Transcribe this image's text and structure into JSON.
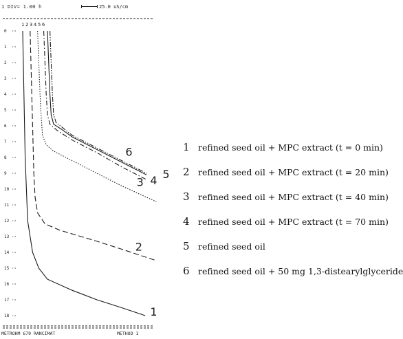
{
  "header": {
    "div_label": "1 DIV= 1.00 h",
    "scale_label": "25.0 uS/cm"
  },
  "footer": {
    "left": "METROHM 679 RANCIMAT",
    "right": "METHOD 1"
  },
  "colors": {
    "ink": "#1a1a1a"
  },
  "chart_data": {
    "type": "line",
    "title": "",
    "xlabel": "",
    "ylabel": "",
    "y_ticks": [
      "0",
      "1",
      "2",
      "3",
      "4",
      "5",
      "6",
      "7",
      "8",
      "9",
      "10",
      "11",
      "12",
      "13",
      "14",
      "15",
      "16",
      "17",
      "18"
    ],
    "top_labels": [
      "1",
      "2",
      "3",
      "4",
      "5",
      "6"
    ],
    "series": [
      {
        "name": "1",
        "style": "solid",
        "points": [
          [
            0.0,
            0
          ],
          [
            0.1,
            4
          ],
          [
            0.2,
            8
          ],
          [
            0.4,
            12
          ],
          [
            0.8,
            14
          ],
          [
            1.3,
            15
          ],
          [
            2.0,
            15.7
          ],
          [
            4.0,
            16.4
          ],
          [
            6.0,
            17.0
          ],
          [
            8.0,
            17.5
          ],
          [
            9.9,
            18.0
          ]
        ]
      },
      {
        "name": "2",
        "style": "longdash",
        "points": [
          [
            0.6,
            0
          ],
          [
            0.7,
            3
          ],
          [
            0.8,
            6
          ],
          [
            0.9,
            9
          ],
          [
            1.0,
            10.5
          ],
          [
            1.2,
            11.5
          ],
          [
            1.8,
            12.2
          ],
          [
            3.0,
            12.6
          ],
          [
            6.0,
            13.3
          ],
          [
            8.0,
            13.8
          ],
          [
            10.7,
            14.5
          ]
        ]
      },
      {
        "name": "3",
        "style": "dotted",
        "points": [
          [
            1.2,
            0
          ],
          [
            1.3,
            2
          ],
          [
            1.4,
            4
          ],
          [
            1.5,
            5.5
          ],
          [
            1.6,
            6.6
          ],
          [
            1.9,
            7.2
          ],
          [
            2.5,
            7.6
          ],
          [
            4.0,
            8.2
          ],
          [
            6.0,
            9.0
          ],
          [
            8.0,
            9.8
          ],
          [
            10.8,
            10.8
          ]
        ]
      },
      {
        "name": "4",
        "style": "dashdot",
        "points": [
          [
            1.7,
            0
          ],
          [
            1.8,
            2
          ],
          [
            1.9,
            4
          ],
          [
            2.0,
            5.3
          ],
          [
            2.2,
            5.9
          ],
          [
            2.8,
            6.3
          ],
          [
            4.0,
            6.9
          ],
          [
            6.0,
            7.7
          ],
          [
            8.0,
            8.6
          ],
          [
            10.0,
            9.4
          ]
        ]
      },
      {
        "name": "5",
        "style": "solid",
        "points": [
          [
            2.0,
            0
          ],
          [
            2.1,
            2
          ],
          [
            2.2,
            4
          ],
          [
            2.3,
            5.3
          ],
          [
            2.5,
            5.9
          ],
          [
            3.1,
            6.2
          ],
          [
            4.0,
            6.7
          ],
          [
            6.0,
            7.5
          ],
          [
            8.0,
            8.3
          ],
          [
            10.0,
            9.1
          ]
        ]
      },
      {
        "name": "6",
        "style": "dashdotdot",
        "points": [
          [
            2.2,
            0
          ],
          [
            2.3,
            2
          ],
          [
            2.4,
            4
          ],
          [
            2.5,
            5.3
          ],
          [
            2.7,
            5.8
          ],
          [
            3.2,
            6.1
          ],
          [
            4.0,
            6.6
          ],
          [
            6.0,
            7.4
          ],
          [
            8.0,
            8.2
          ],
          [
            10.0,
            9.0
          ]
        ]
      }
    ],
    "curve_labels": [
      {
        "text": "1",
        "x": 10.3,
        "y": 18.0
      },
      {
        "text": "2",
        "x": 9.1,
        "y": 13.9
      },
      {
        "text": "3",
        "x": 9.2,
        "y": 9.8
      },
      {
        "text": "6",
        "x": 8.3,
        "y": 7.9
      },
      {
        "text": "4",
        "x": 10.3,
        "y": 9.7
      },
      {
        "text": "5",
        "x": 11.3,
        "y": 9.3
      }
    ],
    "legend": [
      {
        "num": "1",
        "text": "refined seed oil  +  MPC  extract  (t = 0 min)"
      },
      {
        "num": "2",
        "text": "refined seed oil  +  MPC extract  (t = 20 min)"
      },
      {
        "num": "3",
        "text": "refined seed oil  +  MPC extract  (t = 40 min)"
      },
      {
        "num": "4",
        "text": "refined seed oil  +  MPC extract  (t = 70 min)"
      },
      {
        "num": "5",
        "text": "refined seed oil"
      },
      {
        "num": "6",
        "text": "refined seed oil  +  50 mg 1,3-distearylglyceride"
      }
    ]
  }
}
